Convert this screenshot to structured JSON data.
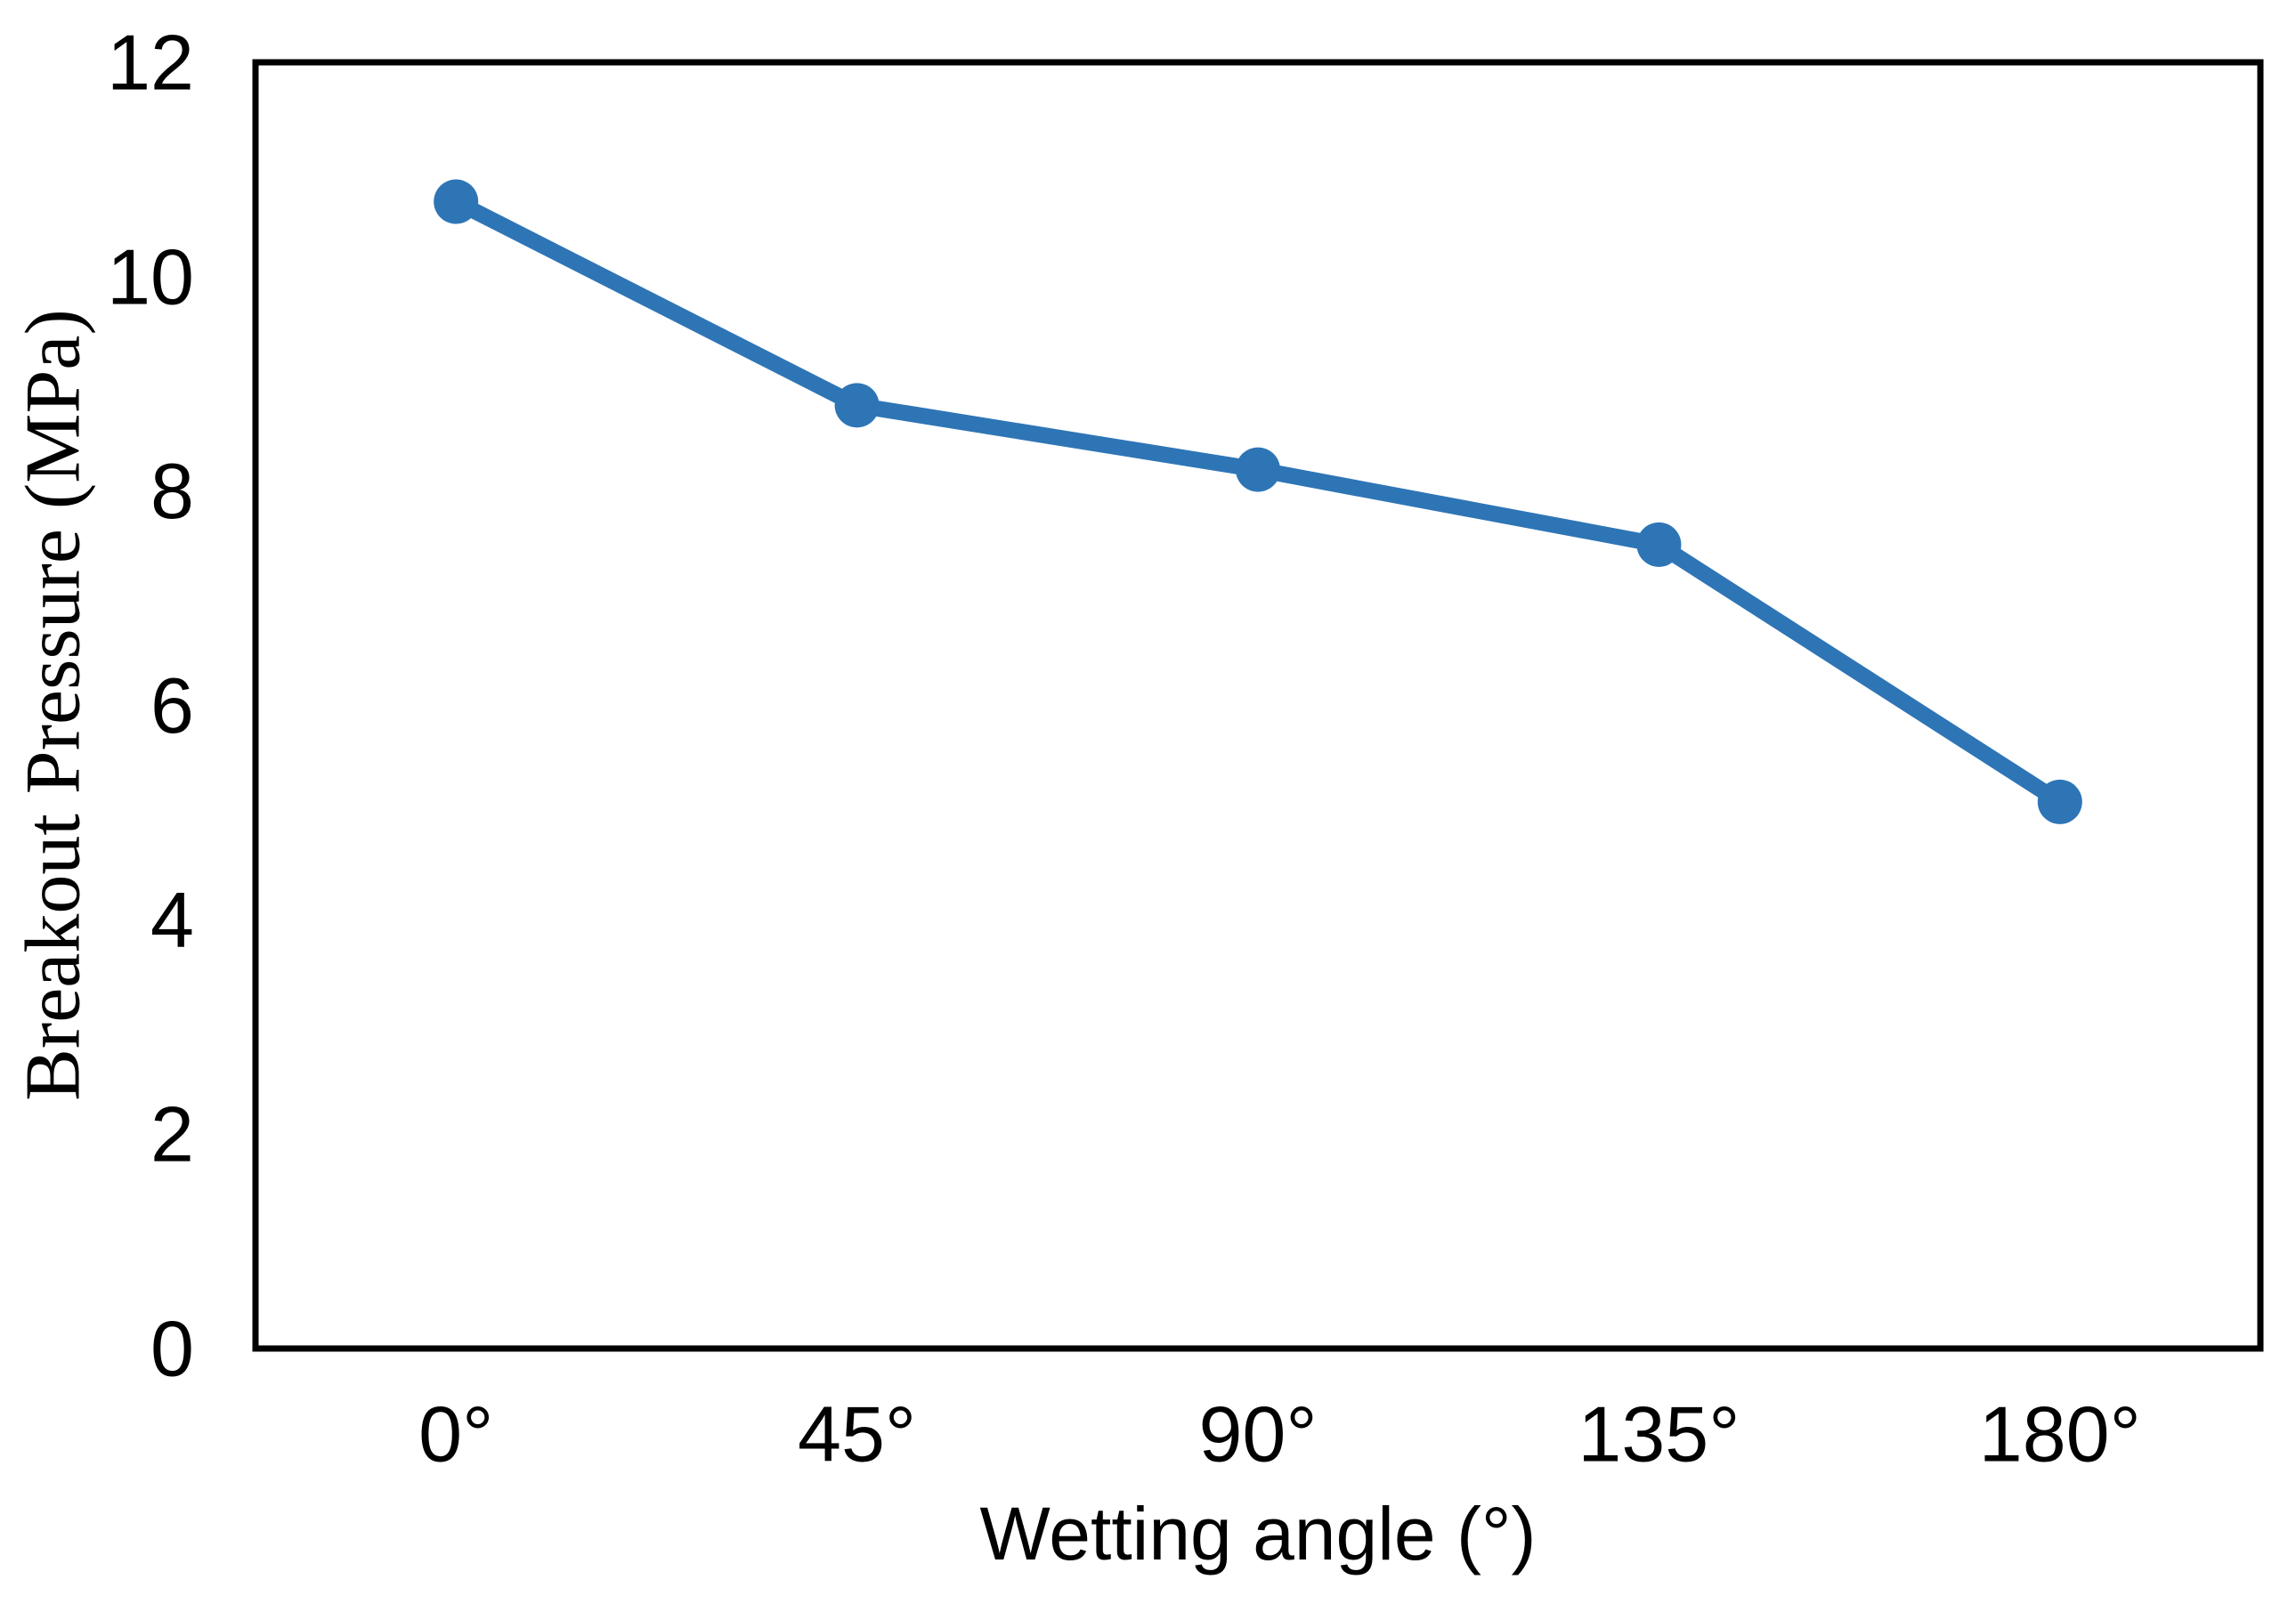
{
  "figure": {
    "background_color": "#FFFFFF",
    "axis_color": "#000000"
  },
  "chart_data": {
    "type": "line",
    "title": "",
    "categories": [
      "0°",
      "45°",
      "90°",
      "135°",
      "180°"
    ],
    "values": [
      10.7,
      8.8,
      8.2,
      7.5,
      5.1
    ],
    "xlabel": "Wetting angle（°）",
    "ylabel": "Breakout Pressure（MPa）",
    "ylim": [
      0,
      12
    ],
    "yticks": [
      0,
      2,
      4,
      6,
      8,
      10,
      12
    ],
    "grid": false,
    "legend": "none",
    "marker": "circle",
    "line_color": "#2E75B6",
    "marker_color": "#2E75B6"
  }
}
